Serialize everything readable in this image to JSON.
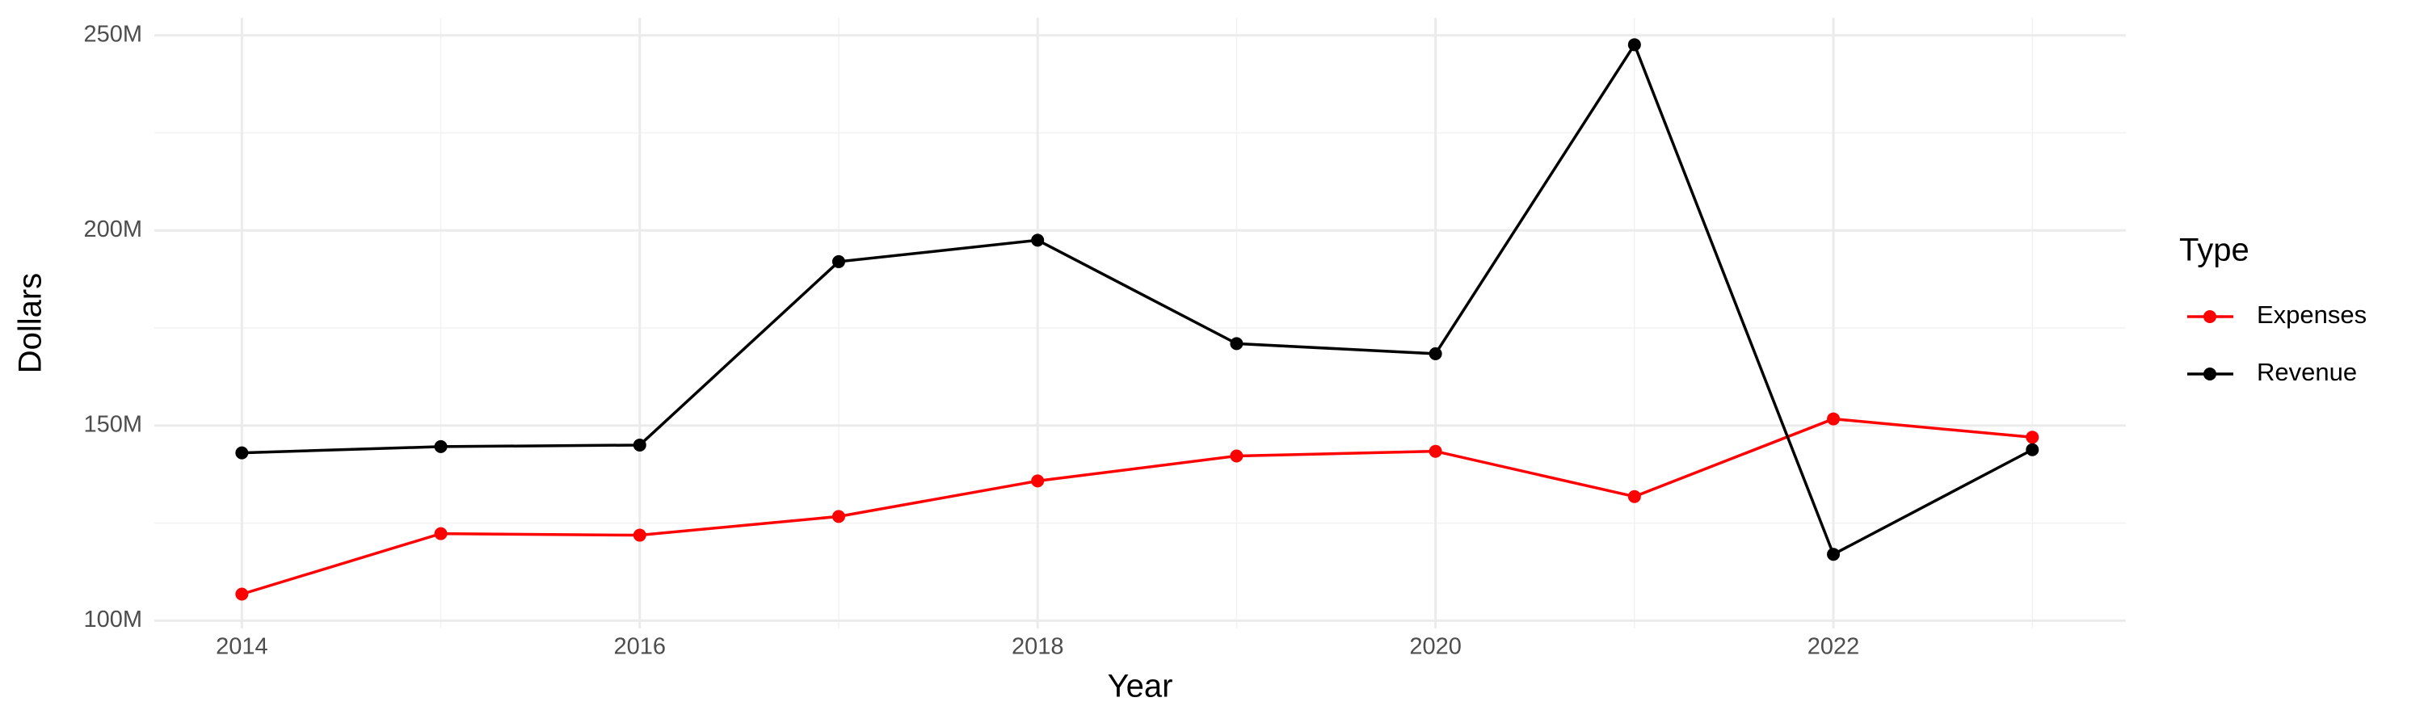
{
  "chart_data": {
    "type": "line",
    "x_label": "Year",
    "y_label": "Dollars",
    "legend_title": "Type",
    "x": [
      2014,
      2015,
      2016,
      2017,
      2018,
      2019,
      2020,
      2021,
      2022,
      2023
    ],
    "series": [
      {
        "name": "Expenses",
        "color": "#ff0000",
        "values": [
          106800000,
          122300000,
          121900000,
          126700000,
          135800000,
          142200000,
          143400000,
          131800000,
          151700000,
          147000000
        ]
      },
      {
        "name": "Revenue",
        "color": "#000000",
        "values": [
          143000000,
          144600000,
          145000000,
          192000000,
          197500000,
          171000000,
          168400000,
          247600000,
          117000000,
          143800000
        ]
      }
    ],
    "xlim": [
      2013.56,
      2023.47
    ],
    "xticks": [
      2014,
      2016,
      2018,
      2020,
      2022
    ],
    "ylim": [
      98000000,
      254500000
    ],
    "yticks": [
      {
        "value": 100000000,
        "label": "100M"
      },
      {
        "value": 150000000,
        "label": "150M"
      },
      {
        "value": 200000000,
        "label": "200M"
      },
      {
        "value": 250000000,
        "label": "250M"
      }
    ],
    "grid": true,
    "legend_position": "right"
  }
}
